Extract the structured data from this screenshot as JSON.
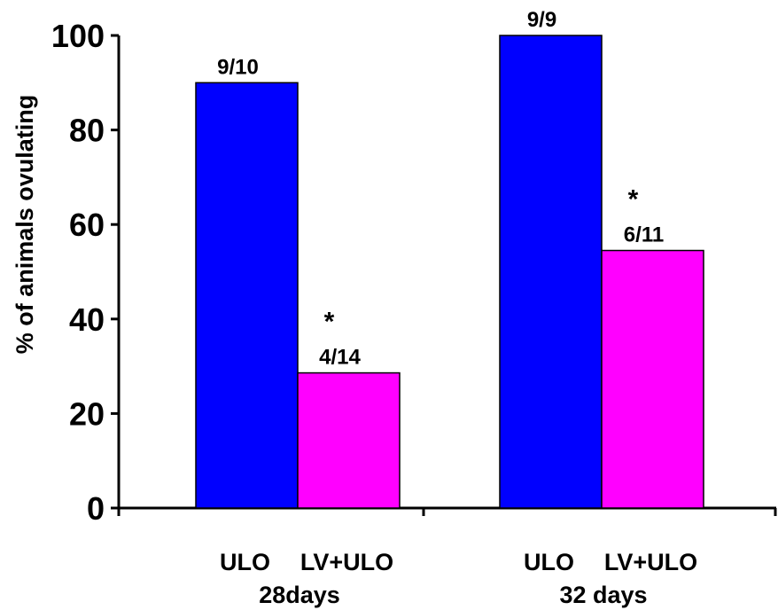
{
  "chart_data": {
    "type": "bar",
    "ylabel": "% of animals ovulating",
    "xlabel": "",
    "ylim": [
      0,
      100
    ],
    "yticks": [
      "0",
      "20",
      "40",
      "60",
      "80",
      "100"
    ],
    "groups": [
      {
        "name": "28days",
        "bars": [
          {
            "category": "ULO",
            "value": 90,
            "label": "9/10",
            "color": "#0000ff",
            "star": ""
          },
          {
            "category": "LV+ULO",
            "value": 28.6,
            "label": "4/14",
            "color": "#ff00ff",
            "star": "*"
          }
        ]
      },
      {
        "name": "32 days",
        "bars": [
          {
            "category": "ULO",
            "value": 100,
            "label": "9/9",
            "color": "#0000ff",
            "star": ""
          },
          {
            "category": "LV+ULO",
            "value": 54.5,
            "label": "6/11",
            "color": "#ff00ff",
            "star": "*"
          }
        ]
      }
    ],
    "grid": false,
    "legend": "none"
  }
}
